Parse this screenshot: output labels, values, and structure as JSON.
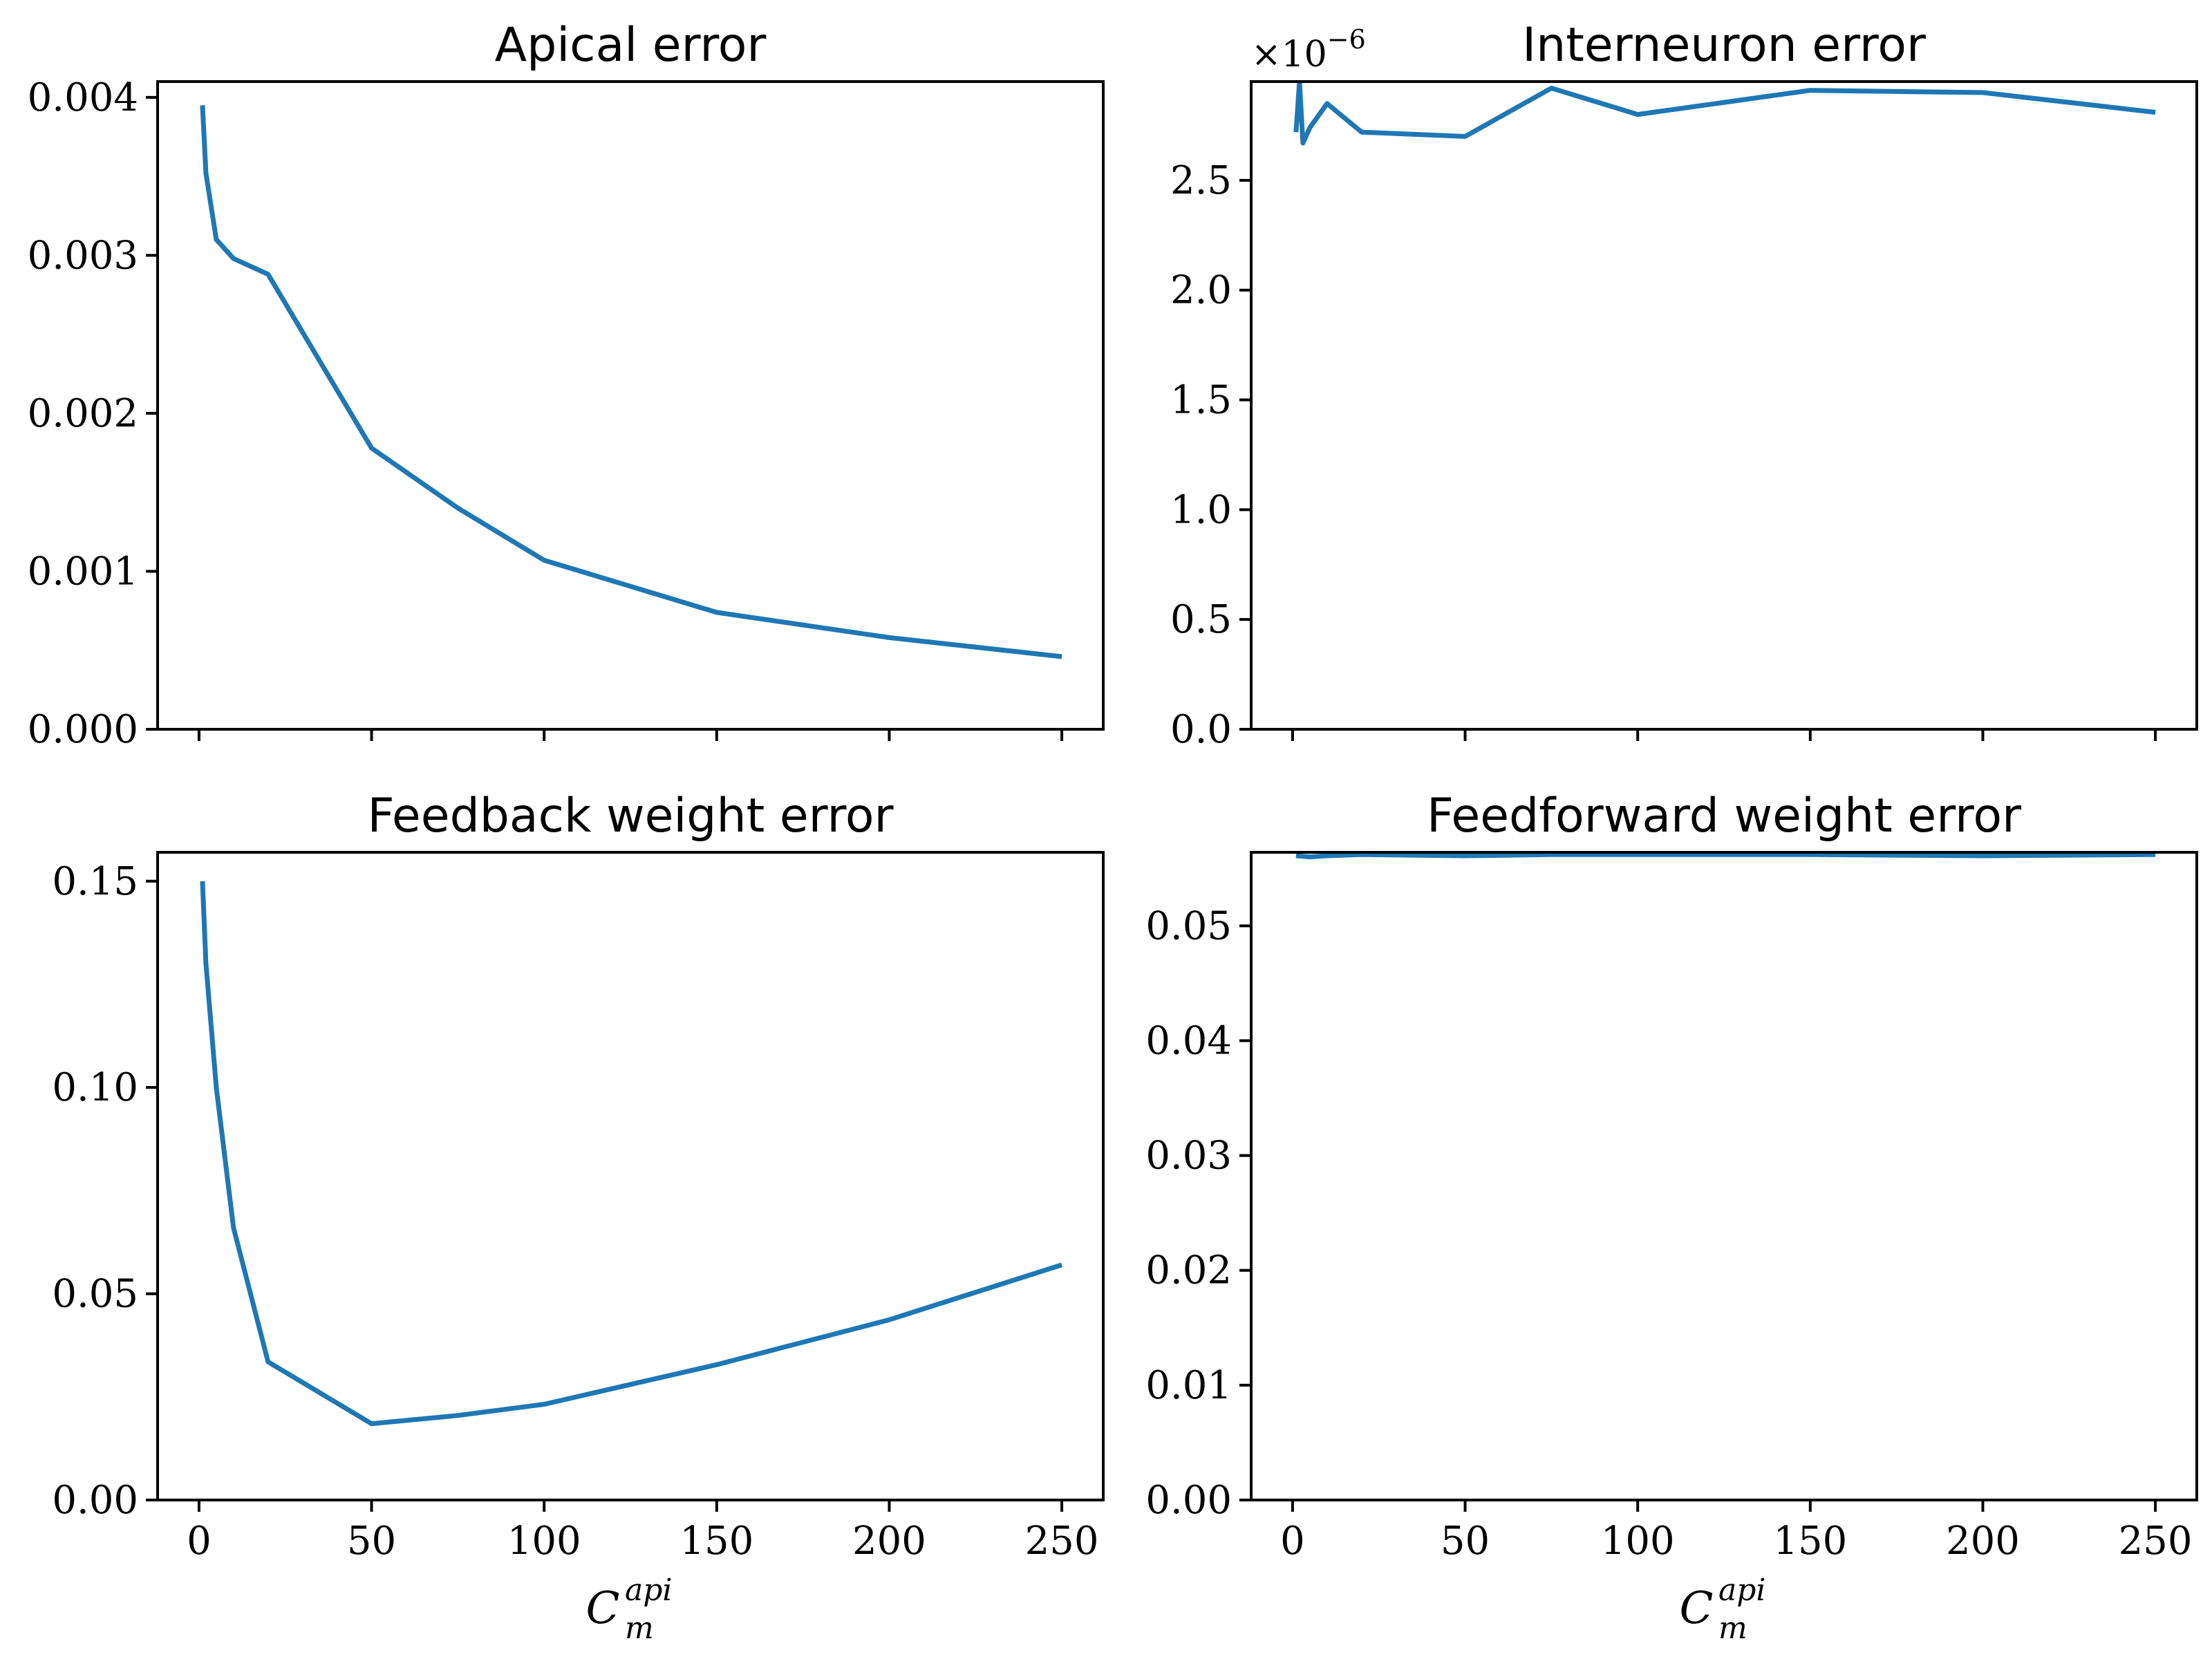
{
  "chart_data": [
    {
      "type": "line",
      "title": "Apical error",
      "xlabel": "",
      "ylabel": "",
      "x": [
        1,
        2,
        5,
        10,
        20,
        50,
        75,
        100,
        150,
        200,
        250
      ],
      "series": [
        {
          "values": [
            0.00395,
            0.00352,
            0.0031,
            0.00298,
            0.00288,
            0.00178,
            0.0014,
            0.00107,
            0.00074,
            0.00058,
            0.00046
          ]
        }
      ],
      "xlim": [
        -12,
        262
      ],
      "ylim": [
        0,
        0.0041
      ],
      "xticks": [
        0,
        50,
        100,
        150,
        200,
        250
      ],
      "xtick_labels": [
        "",
        "",
        "",
        "",
        "",
        ""
      ],
      "yticks": [
        0,
        0.001,
        0.002,
        0.003,
        0.004
      ],
      "ytick_labels": [
        "0.000",
        "0.001",
        "0.002",
        "0.003",
        "0.004"
      ],
      "offset_text": "",
      "grid": false,
      "color": "#1f77b4"
    },
    {
      "type": "line",
      "title": "Interneuron error",
      "xlabel": "",
      "ylabel": "",
      "x": [
        1,
        2,
        3,
        5,
        10,
        20,
        50,
        75,
        100,
        150,
        200,
        250
      ],
      "series": [
        {
          "values": [
            2.72e-06,
            2.95e-06,
            2.67e-06,
            2.74e-06,
            2.85e-06,
            2.72e-06,
            2.7e-06,
            2.92e-06,
            2.8e-06,
            2.91e-06,
            2.9e-06,
            2.81e-06
          ]
        }
      ],
      "xlim": [
        -12,
        262
      ],
      "ylim": [
        0,
        2.95e-06
      ],
      "xticks": [
        0,
        50,
        100,
        150,
        200,
        250
      ],
      "xtick_labels": [
        "",
        "",
        "",
        "",
        "",
        ""
      ],
      "yticks": [
        0,
        5e-07,
        1e-06,
        1.5e-06,
        2e-06,
        2.5e-06
      ],
      "ytick_labels": [
        "0.0",
        "0.5",
        "1.0",
        "1.5",
        "2.0",
        "2.5"
      ],
      "offset_text": "×10",
      "offset_exponent": "−6",
      "grid": false,
      "color": "#1f77b4"
    },
    {
      "type": "line",
      "title": "Feedback weight error",
      "xlabel": "C",
      "xlabel_sub": "m",
      "xlabel_sup": "api",
      "ylabel": "",
      "x": [
        1,
        2,
        5,
        10,
        20,
        50,
        75,
        100,
        150,
        200,
        250
      ],
      "series": [
        {
          "values": [
            0.15,
            0.13,
            0.1,
            0.066,
            0.0335,
            0.0185,
            0.0205,
            0.0232,
            0.0328,
            0.0437,
            0.057
          ]
        }
      ],
      "xlim": [
        -12,
        262
      ],
      "ylim": [
        0,
        0.157
      ],
      "xticks": [
        0,
        50,
        100,
        150,
        200,
        250
      ],
      "xtick_labels": [
        "0",
        "50",
        "100",
        "150",
        "200",
        "250"
      ],
      "yticks": [
        0,
        0.05,
        0.1,
        0.15
      ],
      "ytick_labels": [
        "0.00",
        "0.05",
        "0.10",
        "0.15"
      ],
      "offset_text": "",
      "grid": false,
      "color": "#1f77b4"
    },
    {
      "type": "line",
      "title": "Feedforward weight error",
      "xlabel": "C",
      "xlabel_sub": "m",
      "xlabel_sup": "api",
      "ylabel": "",
      "x": [
        1,
        5,
        10,
        20,
        50,
        75,
        100,
        150,
        200,
        250
      ],
      "series": [
        {
          "values": [
            0.0561,
            0.056,
            0.0561,
            0.0562,
            0.0561,
            0.0562,
            0.0562,
            0.0562,
            0.0561,
            0.0562
          ]
        }
      ],
      "xlim": [
        -12,
        262
      ],
      "ylim": [
        0,
        0.0564
      ],
      "xticks": [
        0,
        50,
        100,
        150,
        200,
        250
      ],
      "xtick_labels": [
        "0",
        "50",
        "100",
        "150",
        "200",
        "250"
      ],
      "yticks": [
        0,
        0.01,
        0.02,
        0.03,
        0.04,
        0.05
      ],
      "ytick_labels": [
        "0.00",
        "0.01",
        "0.02",
        "0.03",
        "0.04",
        "0.05"
      ],
      "offset_text": "",
      "grid": false,
      "color": "#1f77b4"
    }
  ]
}
